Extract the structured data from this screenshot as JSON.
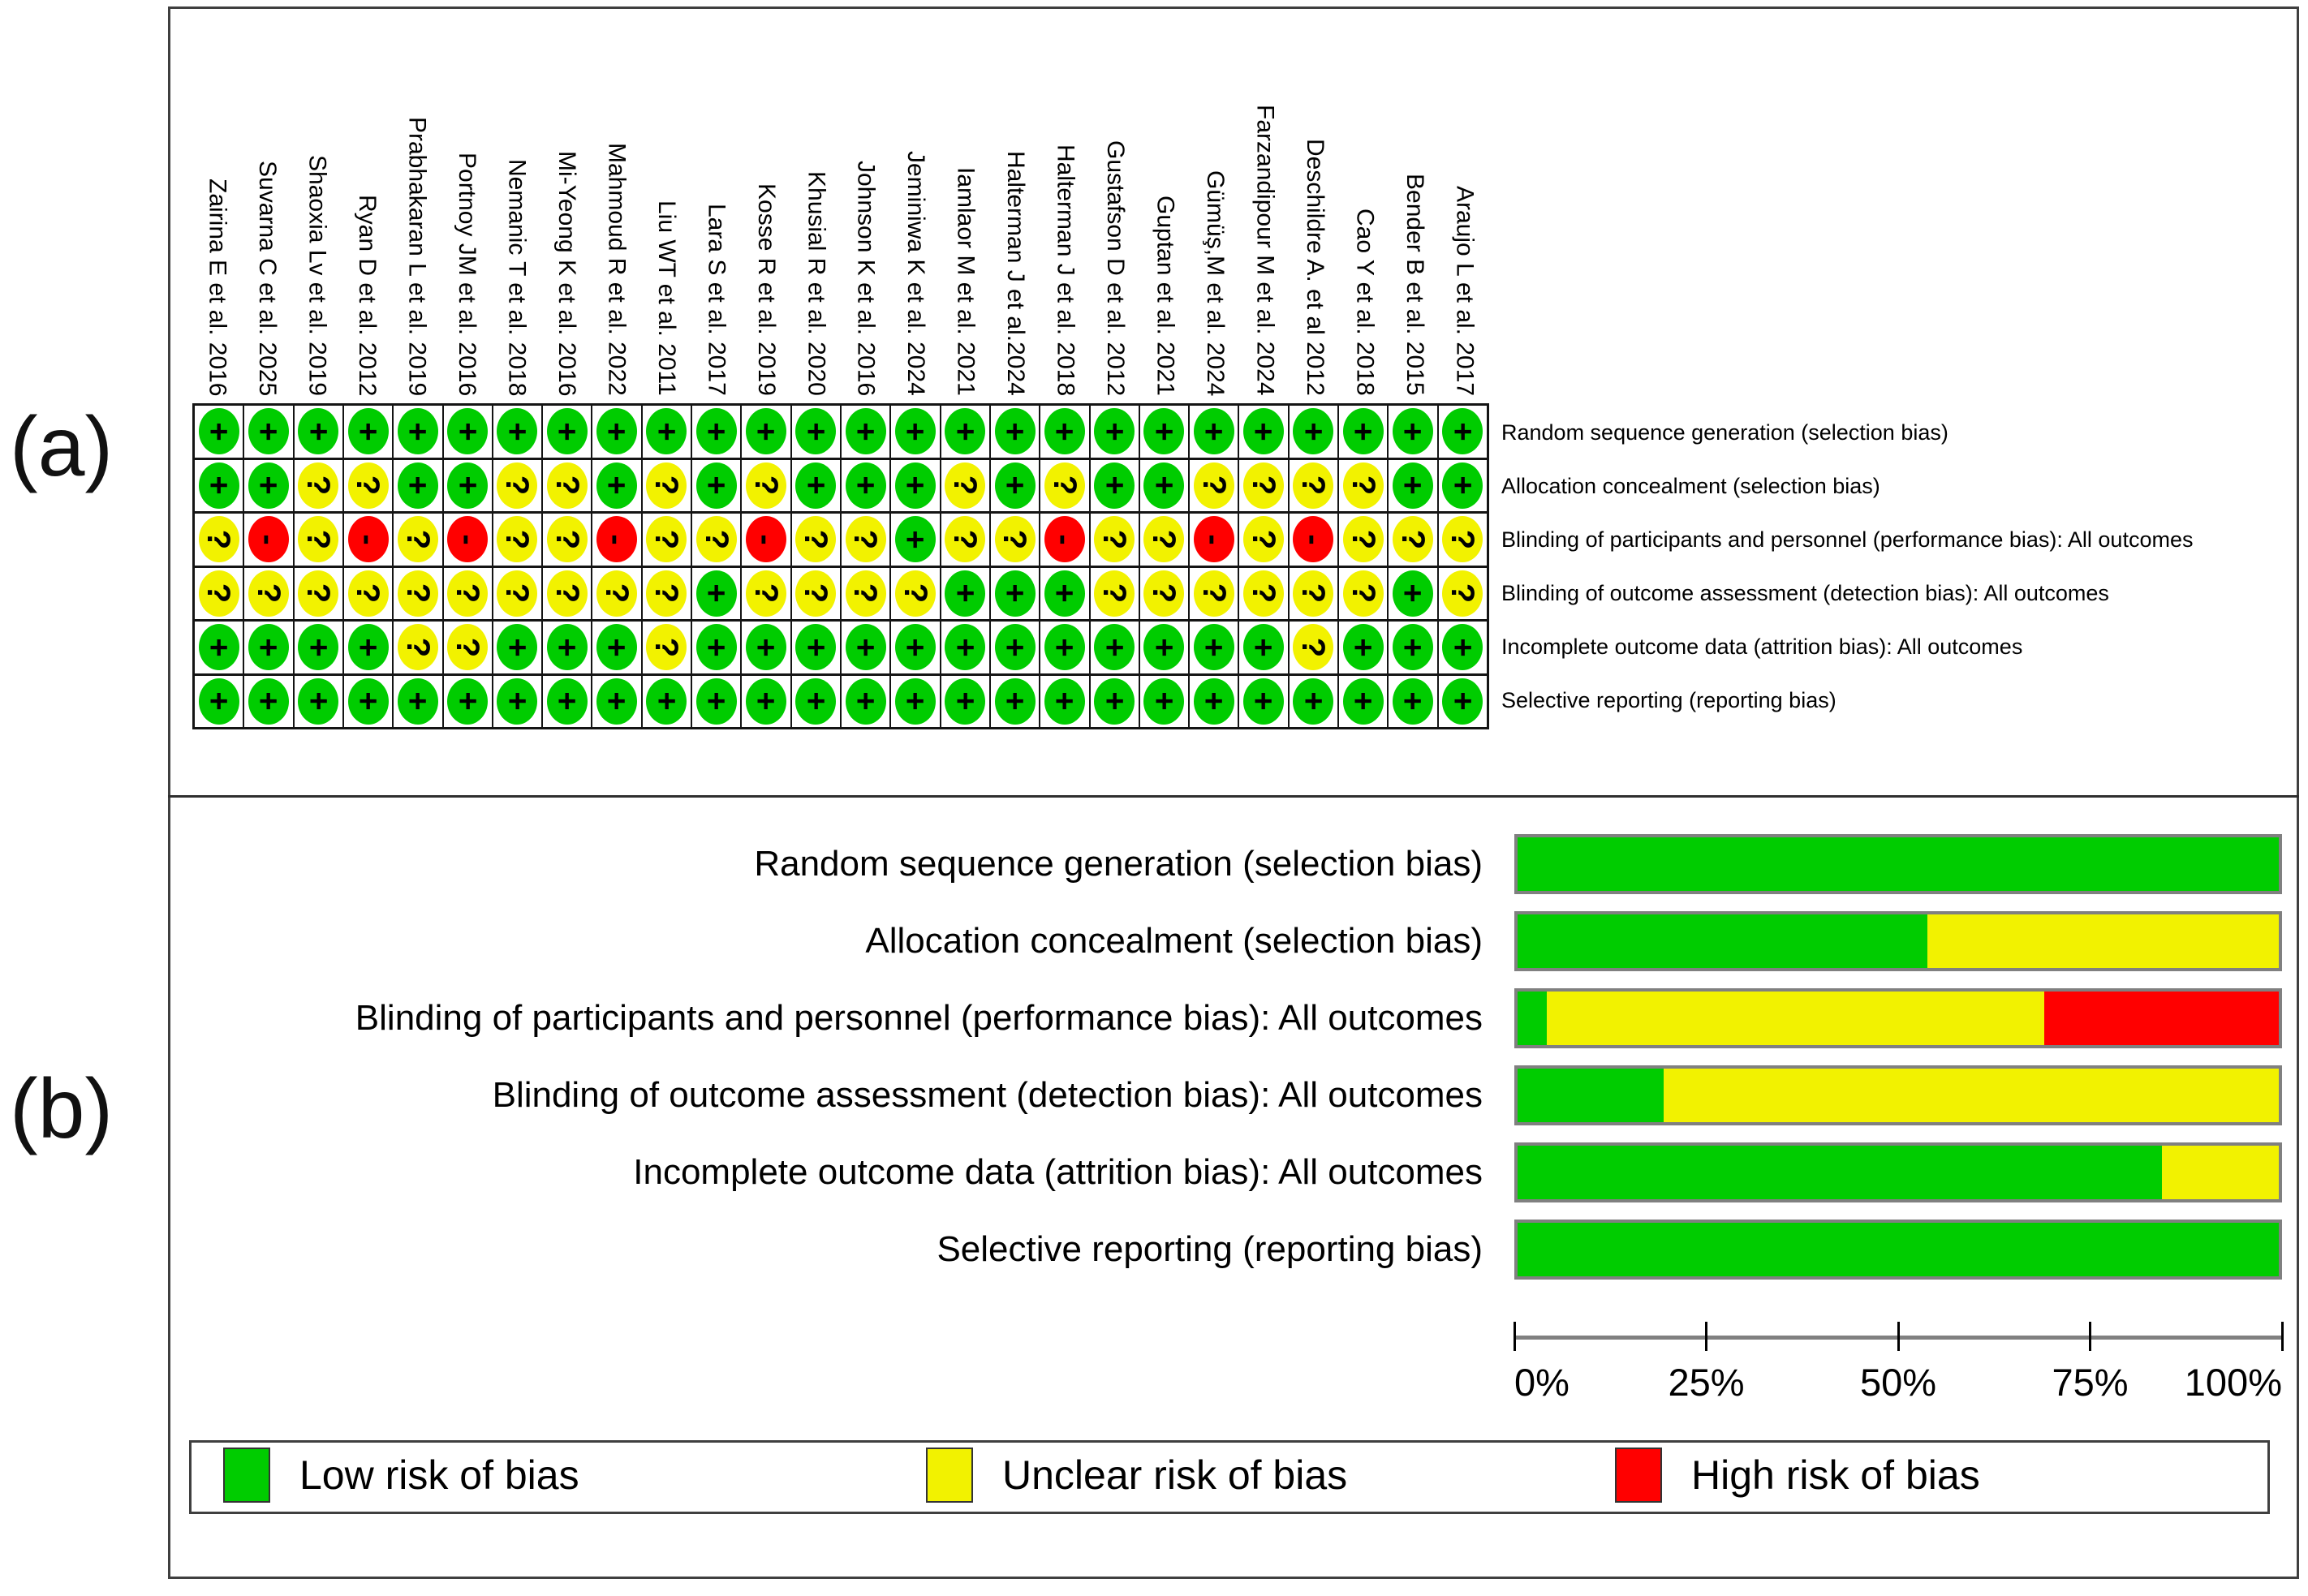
{
  "figure": {
    "panel_a_label": "(a)",
    "panel_b_label": "(b)"
  },
  "colors": {
    "low": "#00CC00",
    "unclear": "#F2F200",
    "high": "#FF0000",
    "grid": "#141414",
    "frame": "#3F3F3F",
    "bar_border": "#808080"
  },
  "studies": [
    "Zairina E et al. 2016",
    "Suvarna C et al. 2025",
    "Shaoxia Lv et al. 2019",
    "Ryan D et al. 2012",
    "Prabhakaran L et al. 2019",
    "Portnoy JM et al. 2016",
    "Nemanic T et al. 2018",
    "Mi-Yeong K et al. 2016",
    "Mahmoud R et al. 2022",
    "Liu WT et al. 2011",
    "Lara S et al. 2017",
    "Kosse R et al. 2019",
    "Khusial R et al. 2020",
    "Johnson K et al. 2016",
    "Jeminiwa K et al. 2024",
    "Iamlaor M et al. 2021",
    "Halterman J et al.2024",
    "Halterman J et al. 2018",
    "Gustafson D et al. 2012",
    "Guptan et al. 2021",
    "Gümüş,M et al. 2024",
    "Farzandipour M et al. 2024",
    "Deschildre A. et al 2012",
    "Cao Y et al. 2018",
    "Bender B et al. 2015",
    "Araujo L et al. 2017"
  ],
  "domains": [
    "Random sequence generation (selection bias)",
    "Allocation concealment (selection bias)",
    "Blinding of participants and personnel (performance bias): All outcomes",
    "Blinding of outcome assessment (detection bias): All outcomes",
    "Incomplete outcome data (attrition bias): All outcomes",
    "Selective reporting (reporting bias)"
  ],
  "matrix": [
    [
      "+",
      "+",
      "+",
      "+",
      "+",
      "+",
      "+",
      "+",
      "+",
      "+",
      "+",
      "+",
      "+",
      "+",
      "+",
      "+",
      "+",
      "+",
      "+",
      "+",
      "+",
      "+",
      "+",
      "+",
      "+",
      "+"
    ],
    [
      "+",
      "+",
      "?",
      "?",
      "+",
      "+",
      "?",
      "?",
      "+",
      "?",
      "+",
      "?",
      "+",
      "+",
      "+",
      "?",
      "+",
      "?",
      "+",
      "+",
      "?",
      "?",
      "?",
      "?",
      "+",
      "+"
    ],
    [
      "?",
      "-",
      "?",
      "-",
      "?",
      "-",
      "?",
      "?",
      "-",
      "?",
      "?",
      "-",
      "?",
      "?",
      "+",
      "?",
      "?",
      "-",
      "?",
      "?",
      "-",
      "?",
      "-",
      "?",
      "?",
      "?"
    ],
    [
      "?",
      "?",
      "?",
      "?",
      "?",
      "?",
      "?",
      "?",
      "?",
      "?",
      "+",
      "?",
      "?",
      "?",
      "?",
      "+",
      "+",
      "+",
      "?",
      "?",
      "?",
      "?",
      "?",
      "?",
      "+",
      "?"
    ],
    [
      "+",
      "+",
      "+",
      "+",
      "?",
      "?",
      "+",
      "+",
      "+",
      "?",
      "+",
      "+",
      "+",
      "+",
      "+",
      "+",
      "+",
      "+",
      "+",
      "+",
      "+",
      "+",
      "?",
      "+",
      "+",
      "+"
    ],
    [
      "+",
      "+",
      "+",
      "+",
      "+",
      "+",
      "+",
      "+",
      "+",
      "+",
      "+",
      "+",
      "+",
      "+",
      "+",
      "+",
      "+",
      "+",
      "+",
      "+",
      "+",
      "+",
      "+",
      "+",
      "+",
      "+"
    ]
  ],
  "chart_data": {
    "type": "bar",
    "orientation": "horizontal-stacked",
    "title": "",
    "xlabel": "",
    "ylabel": "",
    "xlim": [
      0,
      100
    ],
    "grid": false,
    "legend_position": "bottom",
    "categories": [
      "Random sequence generation (selection bias)",
      "Allocation concealment (selection bias)",
      "Blinding of participants and personnel (performance bias): All outcomes",
      "Blinding of outcome assessment (detection bias): All outcomes",
      "Incomplete outcome data (attrition bias): All outcomes",
      "Selective reporting (reporting bias)"
    ],
    "series": [
      {
        "name": "Low risk of bias",
        "color_key": "low",
        "counts": [
          26,
          14,
          1,
          5,
          22,
          26
        ],
        "values": [
          100,
          53.85,
          3.85,
          19.23,
          84.62,
          100
        ]
      },
      {
        "name": "Unclear risk of bias",
        "color_key": "unclear",
        "counts": [
          0,
          12,
          17,
          21,
          4,
          0
        ],
        "values": [
          0,
          46.15,
          65.38,
          80.77,
          15.38,
          0
        ]
      },
      {
        "name": "High risk of bias",
        "color_key": "high",
        "counts": [
          0,
          0,
          8,
          0,
          0,
          0
        ],
        "values": [
          0,
          0,
          30.77,
          0,
          0,
          0
        ]
      }
    ],
    "x_ticks": [
      {
        "label": "0%",
        "value": 0
      },
      {
        "label": "25%",
        "value": 25
      },
      {
        "label": "50%",
        "value": 50
      },
      {
        "label": "75%",
        "value": 75
      },
      {
        "label": "100%",
        "value": 100
      }
    ]
  },
  "legend": {
    "items": [
      {
        "label": "Low risk of bias",
        "color_key": "low"
      },
      {
        "label": "Unclear risk of bias",
        "color_key": "unclear"
      },
      {
        "label": "High risk of bias",
        "color_key": "high"
      }
    ]
  }
}
